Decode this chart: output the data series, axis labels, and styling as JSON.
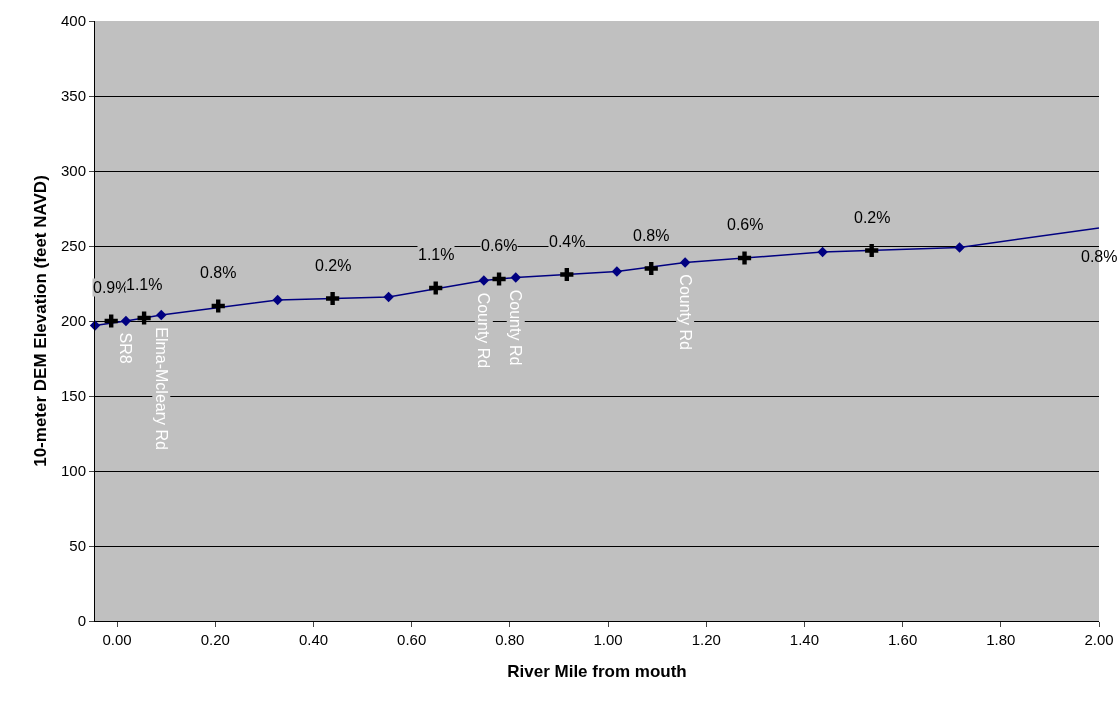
{
  "chart_data": {
    "type": "line",
    "xlabel": "River Mile from mouth",
    "ylabel": "10-meter DEM Elevation (feet NAVD)",
    "xlim": [
      -0.045,
      2.0
    ],
    "ylim": [
      0,
      400
    ],
    "xticks": [
      {
        "value": 0,
        "label": "0.00"
      },
      {
        "value": 0.2,
        "label": "0.20"
      },
      {
        "value": 0.4,
        "label": "0.40"
      },
      {
        "value": 0.6,
        "label": "0.60"
      },
      {
        "value": 0.8,
        "label": "0.80"
      },
      {
        "value": 1,
        "label": "1.00"
      },
      {
        "value": 1.2,
        "label": "1.20"
      },
      {
        "value": 1.4,
        "label": "1.40"
      },
      {
        "value": 1.6,
        "label": "1.60"
      },
      {
        "value": 1.8,
        "label": "1.80"
      },
      {
        "value": 2,
        "label": "2.00"
      }
    ],
    "yticks": [
      0,
      50,
      100,
      150,
      200,
      250,
      300,
      350,
      400
    ],
    "grid": "y",
    "line_style": "solid",
    "series": [
      {
        "type": "line",
        "color": "#000080",
        "marker": "diamond",
        "x": [
          -0.045,
          0.018,
          0.09,
          0.327,
          0.553,
          0.747,
          0.812,
          1.018,
          1.157,
          1.437,
          1.716
        ],
        "values": [
          197,
          200,
          204,
          214,
          216,
          227,
          229,
          233,
          239,
          246,
          249
        ]
      },
      {
        "type": "line",
        "color": "#000080",
        "marker": "none",
        "x": [
          1.716,
          2.0
        ],
        "values": [
          249,
          262
        ]
      },
      {
        "type": "scatter",
        "color": "#000000",
        "marker": "cross",
        "x": [
          -0.012,
          0.055,
          0.206,
          0.439,
          0.649,
          0.778,
          0.916,
          1.088,
          1.278,
          1.537
        ],
        "values": [
          200,
          202,
          210,
          215,
          222,
          228,
          231,
          235,
          242,
          247
        ]
      }
    ],
    "annotations": [
      {
        "text": "0.9%",
        "x": -0.012,
        "y": 200
      },
      {
        "text": "1.1%",
        "x": 0.055,
        "y": 202
      },
      {
        "text": "0.8%",
        "x": 0.206,
        "y": 210
      },
      {
        "text": "0.2%",
        "x": 0.439,
        "y": 215
      },
      {
        "text": "1.1%",
        "x": 0.649,
        "y": 222
      },
      {
        "text": "0.6%",
        "x": 0.778,
        "y": 228
      },
      {
        "text": "0.4%",
        "x": 0.916,
        "y": 231
      },
      {
        "text": "0.8%",
        "x": 1.088,
        "y": 235
      },
      {
        "text": "0.6%",
        "x": 1.278,
        "y": 242
      },
      {
        "text": "0.2%",
        "x": 1.537,
        "y": 247
      },
      "0.8%",
      {
        "text": "SR8",
        "x": 0.018,
        "y": 200
      },
      {
        "text": "Elma-Mcleary Rd",
        "x": 0.09,
        "y": 204
      },
      {
        "text": "County Rd",
        "x": 0.747,
        "y": 227
      },
      {
        "text": "County Rd",
        "x": 0.812,
        "y": 229
      },
      {
        "text": "County Rd",
        "x": 1.157,
        "y": 239
      }
    ]
  }
}
